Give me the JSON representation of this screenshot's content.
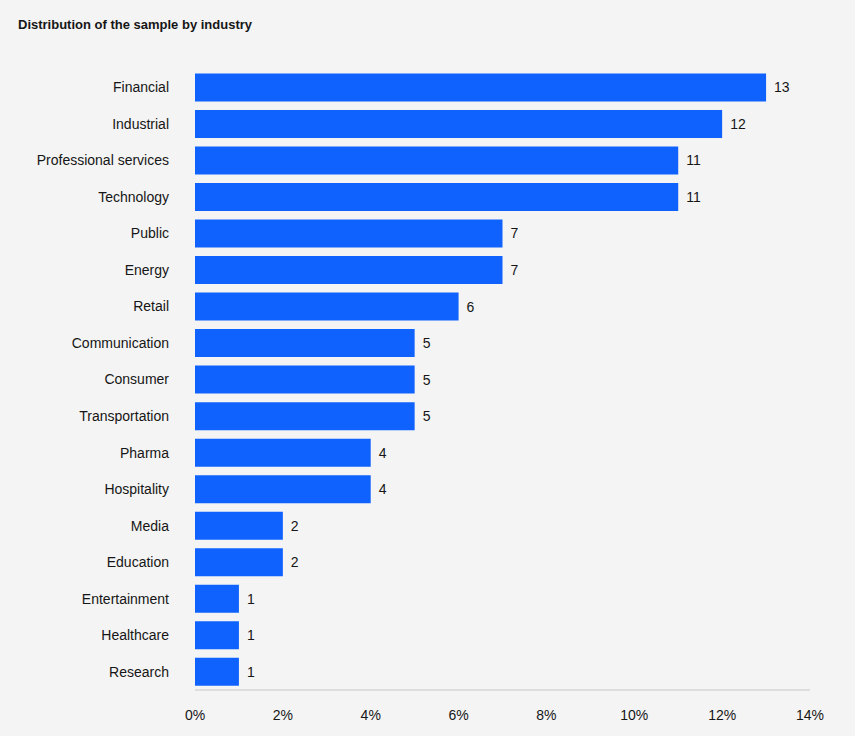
{
  "chart_data": {
    "type": "bar",
    "title": "Distribution of the sample by industry",
    "orientation": "horizontal",
    "categories": [
      "Financial",
      "Industrial",
      "Professional services",
      "Technology",
      "Public",
      "Energy",
      "Retail",
      "Communication",
      "Consumer",
      "Transportation",
      "Pharma",
      "Hospitality",
      "Media",
      "Education",
      "Entertainment",
      "Healthcare",
      "Research"
    ],
    "values": [
      13,
      12,
      11,
      11,
      7,
      7,
      6,
      5,
      5,
      5,
      4,
      4,
      2,
      2,
      1,
      1,
      1
    ],
    "color": "#0f62fe",
    "xlim": [
      0,
      14
    ],
    "xticks": [
      {
        "value": 0,
        "label": "0%"
      },
      {
        "value": 2,
        "label": "2%"
      },
      {
        "value": 4,
        "label": "4%"
      },
      {
        "value": 6,
        "label": "6%"
      },
      {
        "value": 8,
        "label": "8%"
      },
      {
        "value": 10,
        "label": "10%"
      },
      {
        "value": 12,
        "label": "12%"
      },
      {
        "value": 14,
        "label": "14%"
      }
    ],
    "grid": false,
    "data_labels": true
  }
}
